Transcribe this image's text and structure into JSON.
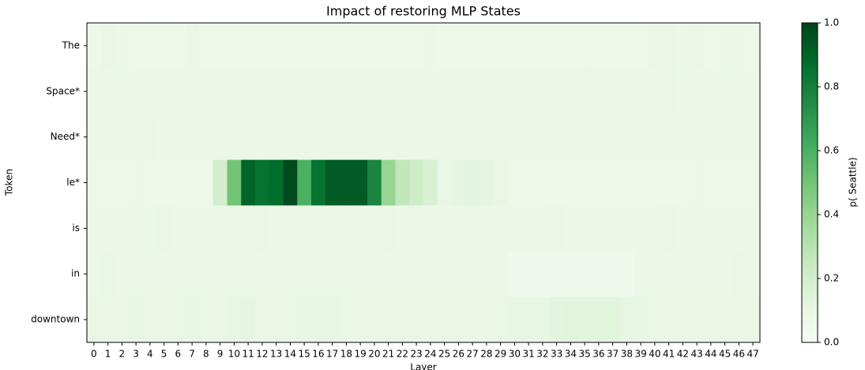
{
  "chart_data": {
    "type": "heatmap",
    "title": "Impact of restoring MLP States",
    "x_label": "Layer",
    "y_label": "Token",
    "colorbar_label": "p( Seattle)",
    "colormap": "Greens",
    "x_categories": [
      0,
      1,
      2,
      3,
      4,
      5,
      6,
      7,
      8,
      9,
      10,
      11,
      12,
      13,
      14,
      15,
      16,
      17,
      18,
      19,
      20,
      21,
      22,
      23,
      24,
      25,
      26,
      27,
      28,
      29,
      30,
      31,
      32,
      33,
      34,
      35,
      36,
      37,
      38,
      39,
      40,
      41,
      42,
      43,
      44,
      45,
      46,
      47
    ],
    "y_categories": [
      "The",
      "Space*",
      "Need*",
      "le*",
      "is",
      "in",
      "downtown"
    ],
    "values": [
      [
        0.07,
        0.09,
        0.08,
        0.07,
        0.07,
        0.07,
        0.07,
        0.09,
        0.07,
        0.07,
        0.07,
        0.07,
        0.07,
        0.07,
        0.07,
        0.07,
        0.07,
        0.07,
        0.07,
        0.07,
        0.07,
        0.07,
        0.07,
        0.07,
        0.08,
        0.07,
        0.07,
        0.07,
        0.07,
        0.07,
        0.07,
        0.07,
        0.07,
        0.07,
        0.07,
        0.07,
        0.07,
        0.07,
        0.07,
        0.07,
        0.09,
        0.09,
        0.08,
        0.09,
        0.07,
        0.08,
        0.08,
        0.07
      ],
      [
        0.08,
        0.08,
        0.08,
        0.08,
        0.08,
        0.08,
        0.08,
        0.08,
        0.08,
        0.08,
        0.08,
        0.08,
        0.08,
        0.08,
        0.08,
        0.08,
        0.08,
        0.08,
        0.08,
        0.08,
        0.08,
        0.08,
        0.08,
        0.08,
        0.08,
        0.08,
        0.08,
        0.08,
        0.08,
        0.08,
        0.08,
        0.08,
        0.08,
        0.08,
        0.08,
        0.09,
        0.08,
        0.08,
        0.08,
        0.08,
        0.08,
        0.09,
        0.08,
        0.08,
        0.08,
        0.08,
        0.08,
        0.08
      ],
      [
        0.08,
        0.08,
        0.08,
        0.08,
        0.09,
        0.08,
        0.08,
        0.08,
        0.08,
        0.08,
        0.08,
        0.09,
        0.08,
        0.08,
        0.08,
        0.08,
        0.08,
        0.08,
        0.08,
        0.08,
        0.08,
        0.08,
        0.08,
        0.08,
        0.08,
        0.08,
        0.08,
        0.08,
        0.08,
        0.08,
        0.08,
        0.08,
        0.08,
        0.08,
        0.08,
        0.09,
        0.08,
        0.08,
        0.08,
        0.08,
        0.08,
        0.08,
        0.08,
        0.08,
        0.08,
        0.08,
        0.08,
        0.08
      ],
      [
        0.07,
        0.07,
        0.07,
        0.08,
        0.07,
        0.07,
        0.07,
        0.07,
        0.07,
        0.2,
        0.5,
        0.9,
        0.85,
        0.87,
        0.98,
        0.6,
        0.85,
        0.93,
        0.93,
        0.93,
        0.78,
        0.4,
        0.27,
        0.22,
        0.18,
        0.1,
        0.12,
        0.13,
        0.12,
        0.1,
        0.07,
        0.07,
        0.07,
        0.07,
        0.07,
        0.07,
        0.07,
        0.07,
        0.07,
        0.07,
        0.07,
        0.07,
        0.07,
        0.08,
        0.07,
        0.07,
        0.07,
        0.07
      ],
      [
        0.08,
        0.08,
        0.08,
        0.08,
        0.08,
        0.09,
        0.08,
        0.08,
        0.08,
        0.08,
        0.08,
        0.08,
        0.09,
        0.08,
        0.08,
        0.09,
        0.08,
        0.08,
        0.08,
        0.08,
        0.08,
        0.09,
        0.08,
        0.08,
        0.08,
        0.08,
        0.08,
        0.08,
        0.08,
        0.08,
        0.08,
        0.08,
        0.08,
        0.09,
        0.08,
        0.08,
        0.08,
        0.08,
        0.08,
        0.08,
        0.08,
        0.09,
        0.08,
        0.08,
        0.08,
        0.08,
        0.08,
        0.08
      ],
      [
        0.08,
        0.09,
        0.08,
        0.08,
        0.08,
        0.08,
        0.08,
        0.08,
        0.08,
        0.08,
        0.08,
        0.08,
        0.08,
        0.08,
        0.08,
        0.08,
        0.08,
        0.08,
        0.08,
        0.08,
        0.08,
        0.08,
        0.08,
        0.08,
        0.08,
        0.08,
        0.08,
        0.08,
        0.08,
        0.08,
        0.06,
        0.06,
        0.06,
        0.06,
        0.06,
        0.06,
        0.06,
        0.06,
        0.06,
        0.08,
        0.08,
        0.08,
        0.08,
        0.08,
        0.08,
        0.08,
        0.09,
        0.08
      ],
      [
        0.1,
        0.1,
        0.1,
        0.11,
        0.1,
        0.1,
        0.1,
        0.11,
        0.1,
        0.1,
        0.11,
        0.12,
        0.1,
        0.1,
        0.1,
        0.11,
        0.11,
        0.11,
        0.1,
        0.1,
        0.1,
        0.1,
        0.1,
        0.1,
        0.1,
        0.1,
        0.1,
        0.1,
        0.1,
        0.1,
        0.11,
        0.11,
        0.11,
        0.13,
        0.14,
        0.14,
        0.14,
        0.14,
        0.11,
        0.11,
        0.1,
        0.1,
        0.1,
        0.1,
        0.1,
        0.1,
        0.1,
        0.1
      ]
    ],
    "clim": [
      0,
      1
    ],
    "cticks": [
      {
        "value": 0,
        "label": "0.0"
      },
      {
        "value": 0.2,
        "label": "0.2"
      },
      {
        "value": 0.4,
        "label": "0.4"
      },
      {
        "value": 0.6,
        "label": "0.6"
      },
      {
        "value": 0.8,
        "label": "0.8"
      },
      {
        "value": 1,
        "label": "1.0"
      }
    ]
  }
}
